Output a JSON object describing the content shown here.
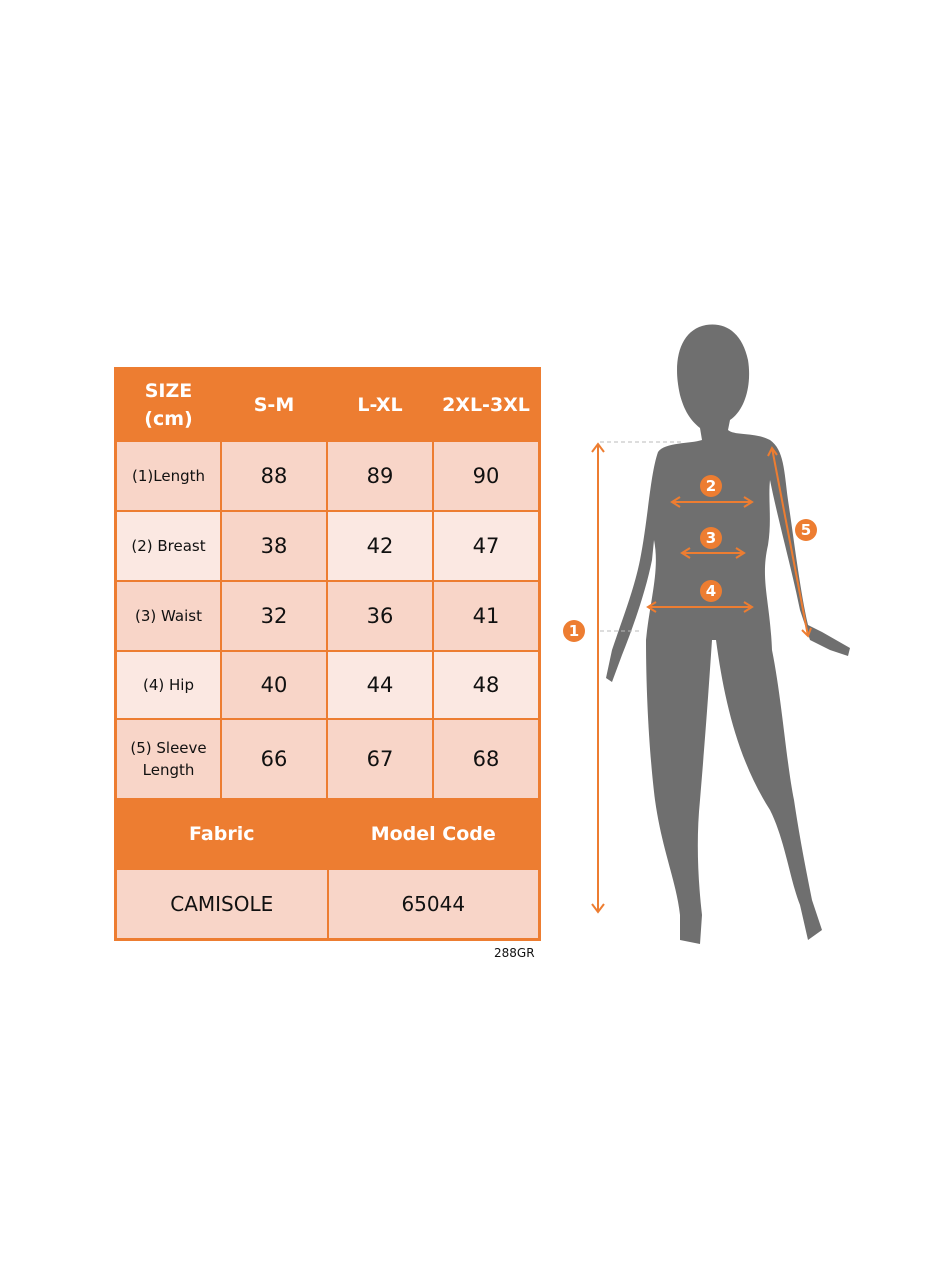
{
  "table": {
    "header": [
      "SIZE\n(cm)",
      "S-M",
      "L-XL",
      "2XL-3XL"
    ],
    "rows": [
      {
        "label": "(1)Length",
        "values": [
          "88",
          "89",
          "90"
        ]
      },
      {
        "label": "(2) Breast",
        "values": [
          "38",
          "42",
          "47"
        ]
      },
      {
        "label": "(3) Waist",
        "values": [
          "32",
          "36",
          "41"
        ]
      },
      {
        "label": "(4) Hip",
        "values": [
          "40",
          "44",
          "48"
        ]
      },
      {
        "label": "(5) Sleeve Length",
        "values": [
          "66",
          "67",
          "68"
        ]
      }
    ],
    "footer_headers": [
      "Fabric",
      "Model Code"
    ],
    "footer_values": [
      "CAMISOLE",
      "65044"
    ]
  },
  "code": "288GR",
  "markers": [
    "1",
    "2",
    "3",
    "4",
    "5"
  ],
  "colors": {
    "accent": "#ed7d31",
    "silhouette": "#6f6f6f",
    "dark_cell": "#f8d5c8",
    "light_cell": "#fbe8e2"
  }
}
